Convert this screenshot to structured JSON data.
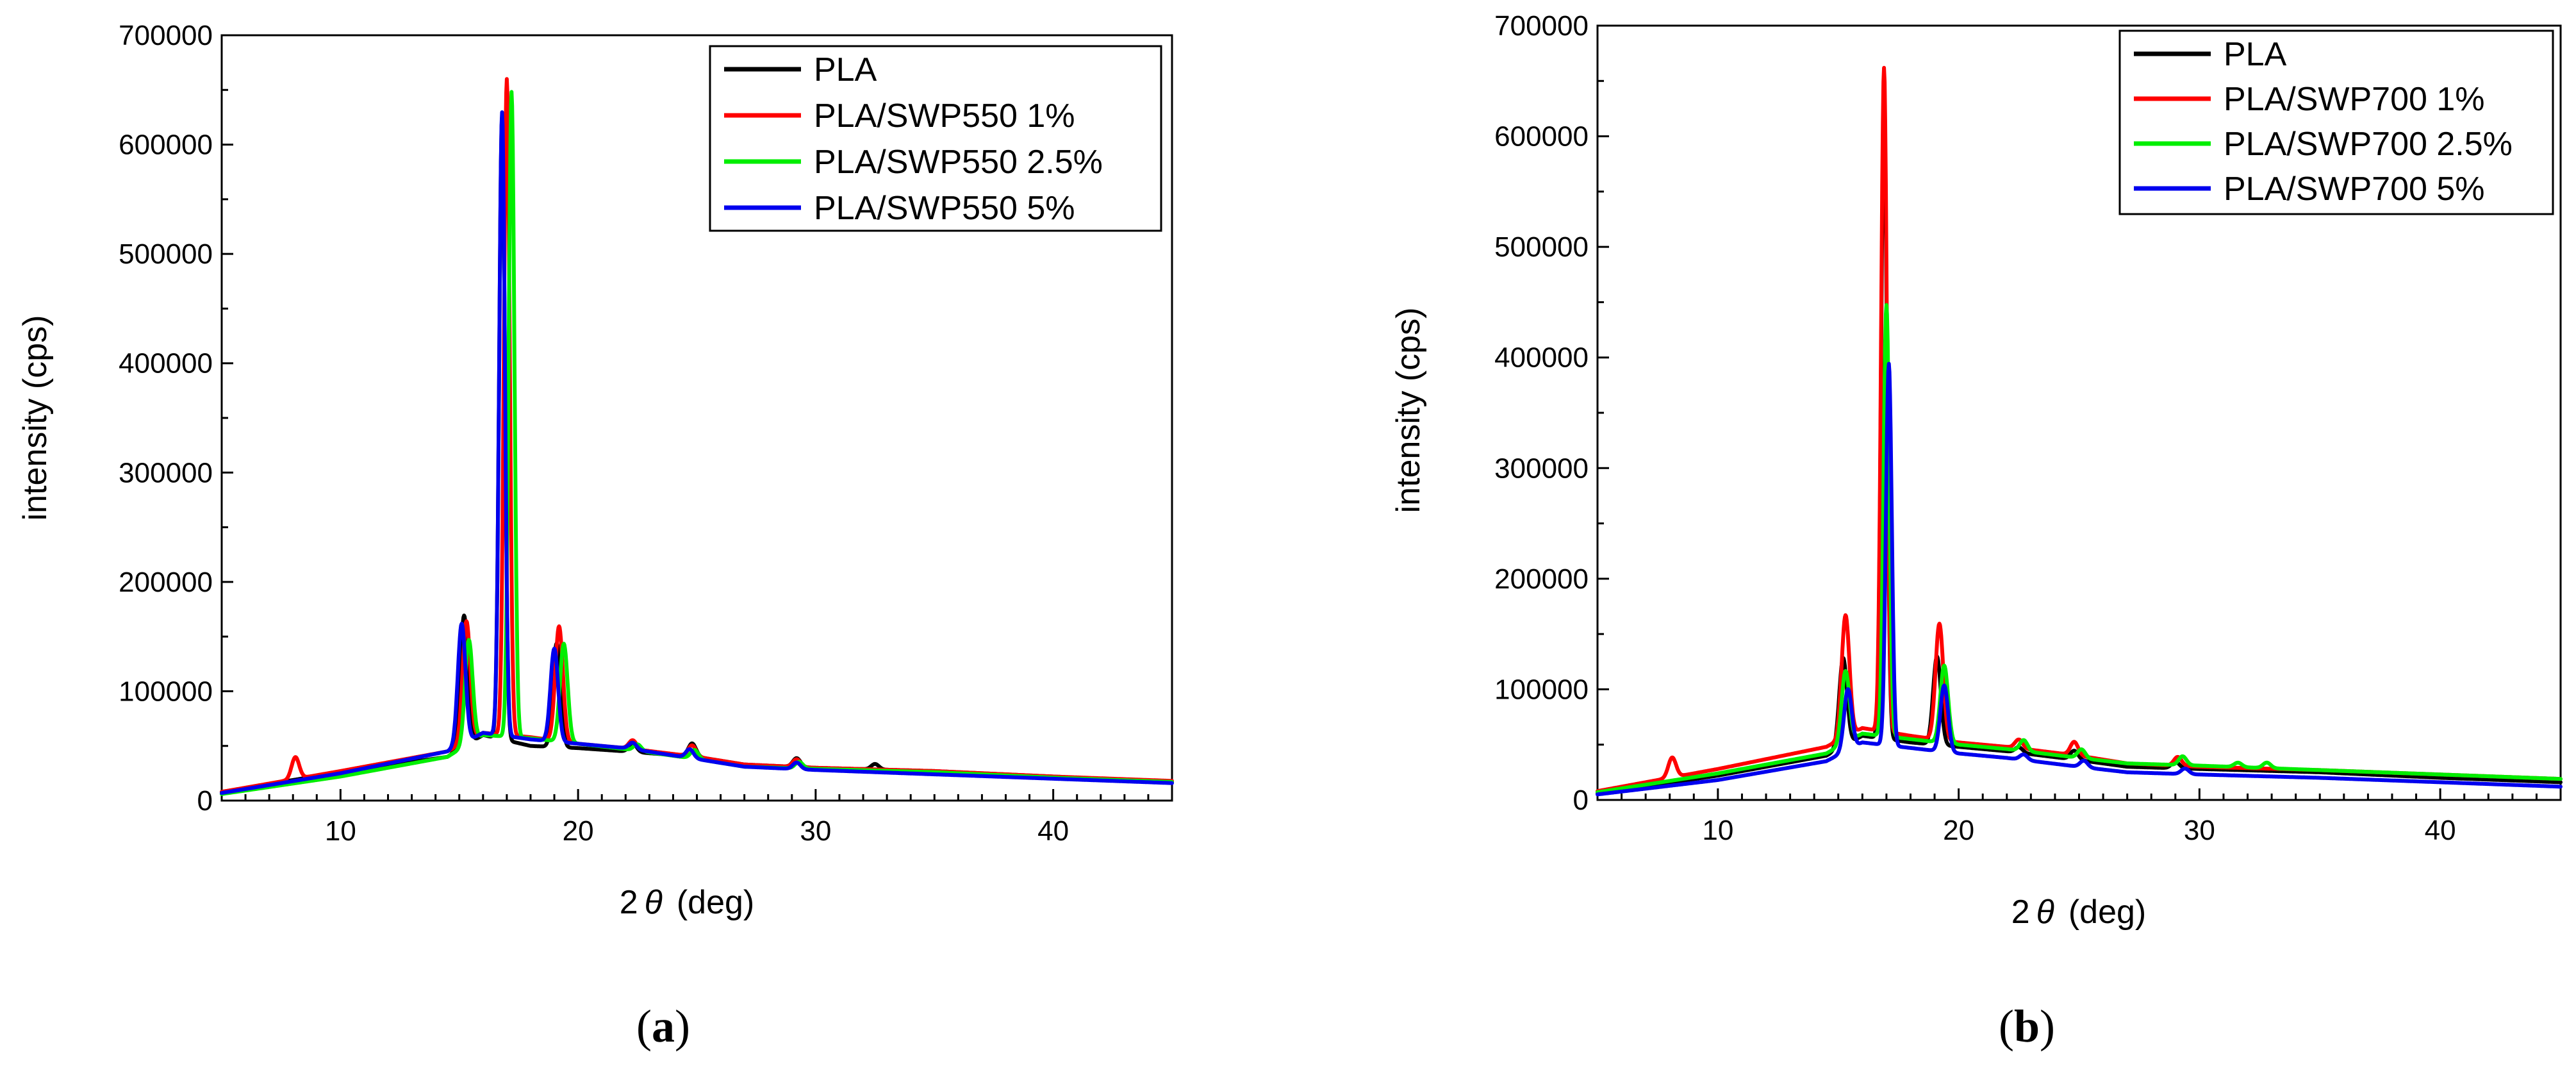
{
  "chart_data": [
    {
      "id": "a",
      "type": "line",
      "caption": "(a)",
      "caption_letter": "a",
      "xlabel": "2θ (deg)",
      "xlabel_theta": "θ",
      "xlabel_prefix": "2",
      "xlabel_suffix": "(deg)",
      "ylabel": "intensity (cps)",
      "xlim": [
        5,
        45
      ],
      "ylim": [
        0,
        700000
      ],
      "xticks": [
        10,
        20,
        30,
        40
      ],
      "yticks": [
        0,
        100000,
        200000,
        300000,
        400000,
        500000,
        600000,
        700000
      ],
      "legend_position": "top-right",
      "series": [
        {
          "name": "PLA",
          "color": "#000000",
          "peaks": {
            "7.9": 0,
            "15.2": 120000,
            "16.8": 570000,
            "19.1": 95000,
            "22.3": 8000,
            "24.8": 12000,
            "29.2": 8000,
            "32.5": 5000
          },
          "base": [
            [
              5,
              8000
            ],
            [
              10,
              26000
            ],
            [
              14.5,
              40000
            ],
            [
              16,
              60000
            ],
            [
              18,
              50000
            ],
            [
              20,
              48000
            ],
            [
              22,
              45000
            ],
            [
              25,
              40000
            ],
            [
              27,
              33000
            ],
            [
              30,
              30000
            ],
            [
              35,
              27000
            ],
            [
              40,
              22000
            ],
            [
              45,
              17000
            ]
          ]
        },
        {
          "name": "PLA/SWP550 1%",
          "color": "#ff0000",
          "peaks": {
            "8.1": 20000,
            "15.3": 110000,
            "17.0": 600000,
            "19.2": 105000,
            "22.3": 8000,
            "24.8": 10000,
            "29.2": 7000
          },
          "base": [
            [
              5,
              8000
            ],
            [
              10,
              27000
            ],
            [
              14.5,
              45000
            ],
            [
              16,
              62000
            ],
            [
              18,
              58000
            ],
            [
              20,
              52000
            ],
            [
              22,
              48000
            ],
            [
              25,
              40000
            ],
            [
              27,
              33000
            ],
            [
              30,
              30000
            ],
            [
              35,
              27000
            ],
            [
              40,
              22000
            ],
            [
              45,
              18000
            ]
          ]
        },
        {
          "name": "PLA/SWP550 2.5%",
          "color": "#00ee00",
          "peaks": {
            "15.4": 95000,
            "17.2": 590000,
            "19.4": 90000,
            "22.5": 6000,
            "24.9": 8000,
            "29.3": 6000
          },
          "base": [
            [
              5,
              6000
            ],
            [
              10,
              22000
            ],
            [
              14.5,
              40000
            ],
            [
              16,
              60000
            ],
            [
              18,
              57000
            ],
            [
              20,
              52000
            ],
            [
              22,
              47000
            ],
            [
              25,
              38000
            ],
            [
              27,
              31000
            ],
            [
              30,
              29000
            ],
            [
              35,
              26000
            ],
            [
              40,
              21000
            ],
            [
              45,
              17000
            ]
          ]
        },
        {
          "name": "PLA/SWP550 5%",
          "color": "#0000ee",
          "peaks": {
            "15.1": 110000,
            "16.8": 570000,
            "19.0": 85000,
            "22.3": 6000,
            "24.7": 8000,
            "29.2": 6000
          },
          "base": [
            [
              5,
              7000
            ],
            [
              10,
              25000
            ],
            [
              14.5,
              45000
            ],
            [
              16,
              62000
            ],
            [
              18,
              56000
            ],
            [
              20,
              52000
            ],
            [
              22,
              48000
            ],
            [
              25,
              38000
            ],
            [
              27,
              31000
            ],
            [
              30,
              28000
            ],
            [
              35,
              24000
            ],
            [
              40,
              20000
            ],
            [
              45,
              16000
            ]
          ]
        }
      ]
    },
    {
      "id": "b",
      "type": "line",
      "caption": "(b)",
      "caption_letter": "b",
      "xlabel": "2θ (deg)",
      "xlabel_theta": "θ",
      "xlabel_prefix": "2",
      "xlabel_suffix": "(deg)",
      "ylabel": "intensity (cps)",
      "xlim": [
        5,
        45
      ],
      "ylim": [
        0,
        700000
      ],
      "xticks": [
        10,
        20,
        30,
        40
      ],
      "yticks": [
        0,
        100000,
        200000,
        300000,
        400000,
        500000,
        600000,
        700000
      ],
      "legend_position": "top-right",
      "series": [
        {
          "name": "PLA",
          "color": "#000000",
          "peaks": {
            "15.2": 80000,
            "16.9": 570000,
            "19.1": 80000,
            "22.5": 5000,
            "24.8": 8000,
            "29.0": 6000
          },
          "base": [
            [
              5,
              6000
            ],
            [
              10,
              22000
            ],
            [
              14.5,
              40000
            ],
            [
              16,
              58000
            ],
            [
              18,
              52000
            ],
            [
              20,
              48000
            ],
            [
              22,
              44000
            ],
            [
              25,
              36000
            ],
            [
              27,
              30000
            ],
            [
              30,
              28000
            ],
            [
              35,
              25000
            ],
            [
              40,
              20000
            ],
            [
              45,
              16000
            ]
          ]
        },
        {
          "name": "PLA/SWP700 1%",
          "color": "#ff0000",
          "peaks": {
            "8.1": 18000,
            "15.3": 110000,
            "16.9": 600000,
            "19.2": 105000,
            "22.5": 8000,
            "24.8": 12000,
            "29.1": 8000
          },
          "base": [
            [
              5,
              8000
            ],
            [
              10,
              28000
            ],
            [
              14.5,
              48000
            ],
            [
              16,
              65000
            ],
            [
              18,
              58000
            ],
            [
              20,
              52000
            ],
            [
              22,
              48000
            ],
            [
              25,
              40000
            ],
            [
              27,
              33000
            ],
            [
              30,
              30000
            ],
            [
              35,
              27000
            ],
            [
              40,
              23000
            ],
            [
              45,
              19000
            ]
          ]
        },
        {
          "name": "PLA/SWP700 2.5%",
          "color": "#00ee00",
          "peaks": {
            "15.3": 65000,
            "17.0": 390000,
            "19.4": 70000,
            "22.7": 10000,
            "25.1": 8000,
            "29.3": 8000,
            "31.6": 4000,
            "32.8": 5000
          },
          "base": [
            [
              5,
              7000
            ],
            [
              10,
              24000
            ],
            [
              14.5,
              42000
            ],
            [
              16,
              60000
            ],
            [
              18,
              55000
            ],
            [
              20,
              50000
            ],
            [
              22,
              46000
            ],
            [
              25,
              38000
            ],
            [
              27,
              33000
            ],
            [
              30,
              31000
            ],
            [
              35,
              27000
            ],
            [
              40,
              23000
            ],
            [
              45,
              19000
            ]
          ]
        },
        {
          "name": "PLA/SWP700 5%",
          "color": "#0000ee",
          "peaks": {
            "15.4": 55000,
            "17.1": 345000,
            "19.4": 60000,
            "22.7": 5000,
            "25.2": 6000,
            "29.4": 5000
          },
          "base": [
            [
              5,
              5000
            ],
            [
              10,
              18000
            ],
            [
              14.5,
              35000
            ],
            [
              16,
              52000
            ],
            [
              18,
              47000
            ],
            [
              20,
              42000
            ],
            [
              22,
              38000
            ],
            [
              25,
              30000
            ],
            [
              27,
              25000
            ],
            [
              30,
              23000
            ],
            [
              35,
              20000
            ],
            [
              40,
              16000
            ],
            [
              45,
              12000
            ]
          ]
        }
      ]
    }
  ]
}
